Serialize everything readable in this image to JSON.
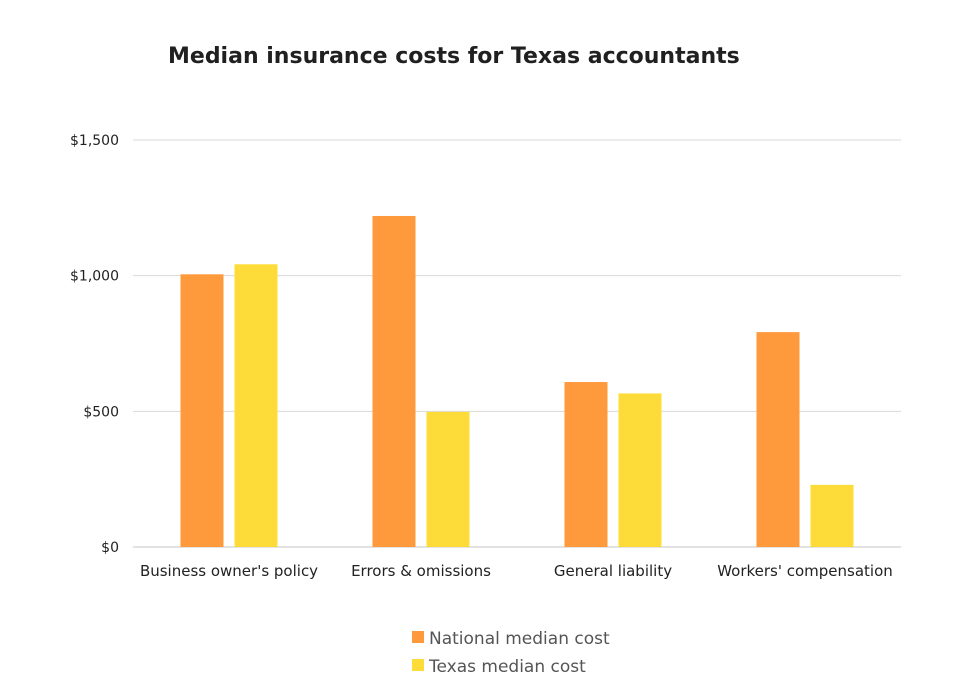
{
  "chart_data": {
    "type": "bar",
    "title": "Median insurance costs for Texas accountants",
    "xlabel": "",
    "ylabel": "",
    "categories": [
      "Business owner's policy",
      "Errors & omissions",
      "General liability",
      "Workers' compensation"
    ],
    "series": [
      {
        "name": "National median cost",
        "color": "#FF9A3C",
        "values": [
          1005,
          1220,
          608,
          792
        ]
      },
      {
        "name": "Texas median cost",
        "color": "#FDDC3A",
        "values": [
          1042,
          498,
          566,
          229
        ]
      }
    ],
    "ylim": [
      0,
      1500
    ],
    "yticks": [
      0,
      500,
      1000,
      1500
    ],
    "ytick_labels": [
      "$0",
      "$500",
      "$1,000",
      "$1,500"
    ],
    "grid": true,
    "legend_position": "bottom"
  }
}
